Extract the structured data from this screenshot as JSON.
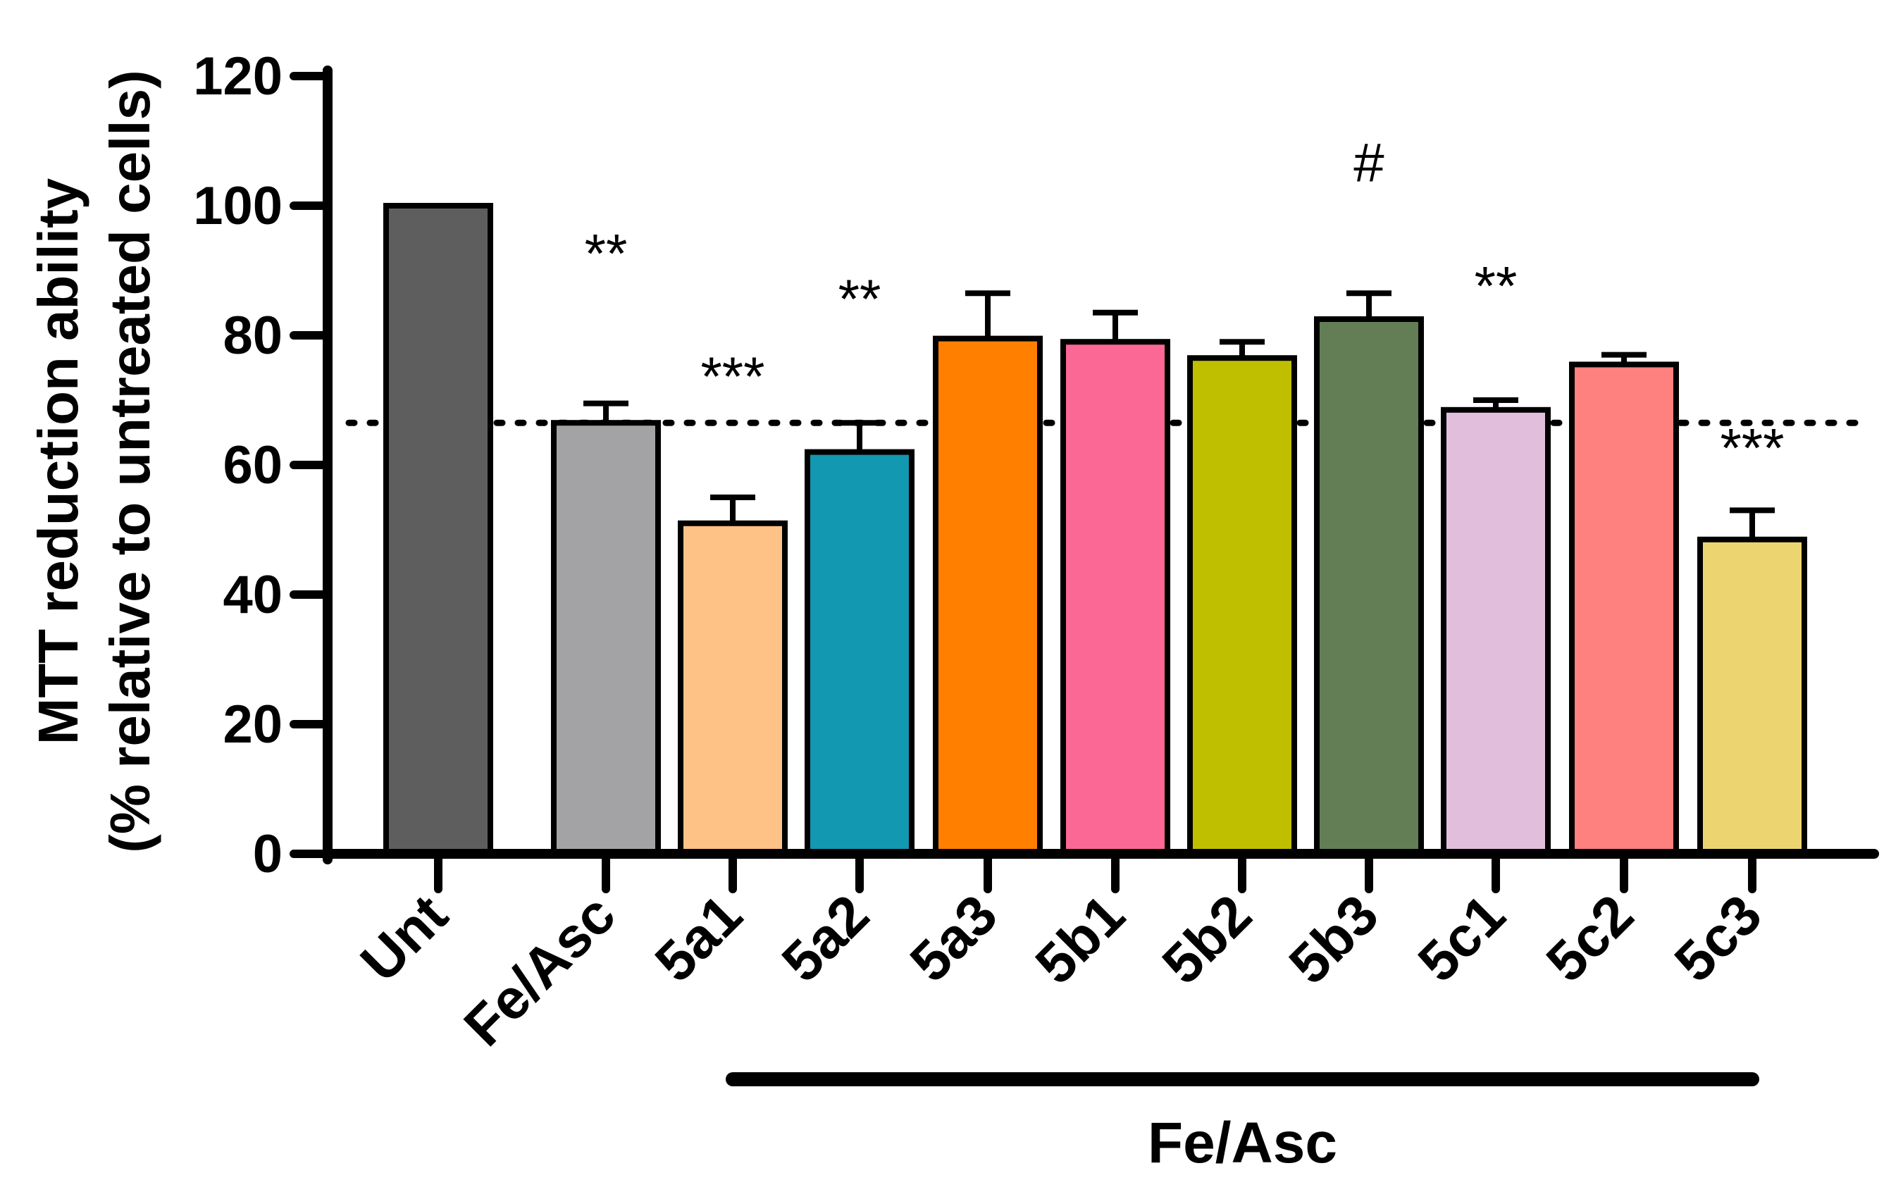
{
  "chart_data": {
    "type": "bar",
    "title": "",
    "xlabel": "",
    "ylabel": "MTT reduction ability",
    "ylabel_line2": "(% relative to untreated cells)",
    "ylim": [
      0,
      120
    ],
    "yticks": [
      "0",
      "20",
      "40",
      "60",
      "80",
      "100",
      "120"
    ],
    "categories": [
      "Unt",
      "Fe/Asc",
      "5a1",
      "5a2",
      "5a3",
      "5b1",
      "5b2",
      "5b3",
      "5c1",
      "5c2",
      "5c3"
    ],
    "values": [
      100,
      66.5,
      51,
      62,
      79.5,
      79,
      76.5,
      82.5,
      68.5,
      75.5,
      48.5
    ],
    "errors": [
      0,
      3,
      4,
      4.5,
      7,
      4.5,
      2.5,
      4,
      1.5,
      1.5,
      4.5
    ],
    "colors": [
      "#5e5e5e",
      "#a3a3a6",
      "#fec186",
      "#1298b0",
      "#ff8000",
      "#fc6895",
      "#bfbf00",
      "#637e55",
      "#e1bfdc",
      "#fe807f",
      "#ecd571"
    ],
    "reference_line": 66.5,
    "annotations": [
      {
        "category": "Fe/Asc",
        "text": "**",
        "y": 93
      },
      {
        "category": "5a1",
        "text": "***",
        "y": 74
      },
      {
        "category": "5a2",
        "text": "**",
        "y": 86
      },
      {
        "category": "5b3",
        "text": "#",
        "y": 107
      },
      {
        "category": "5c1",
        "text": "**",
        "y": 88
      },
      {
        "category": "5c3",
        "text": "***",
        "y": 63
      }
    ],
    "group_label": "Fe/Asc",
    "group_start": "5a1",
    "group_end": "5c3"
  }
}
